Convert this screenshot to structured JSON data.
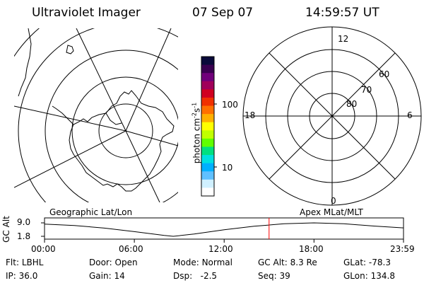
{
  "header": {
    "instrument": "Ultraviolet Imager",
    "date": "07 Sep 07",
    "time": "14:59:57 UT"
  },
  "colorbar": {
    "unit_label": "photon cm",
    "unit_sup1": "-2",
    "unit_mid": "s",
    "unit_sup2": "-1",
    "ticks": [
      "100",
      "10"
    ],
    "colors": [
      "#0a0a3a",
      "#3a0050",
      "#70007a",
      "#a0005a",
      "#d00020",
      "#f03000",
      "#ff7000",
      "#ffb000",
      "#ffff00",
      "#c0ff00",
      "#60ff00",
      "#00e080",
      "#00e0e0",
      "#00b0ff",
      "#60c0ff",
      "#d0f0ff",
      "#ffffff"
    ]
  },
  "left_map": {
    "title": "Geographic Lat/Lon"
  },
  "right_map": {
    "title": "Apex  MLat/MLT",
    "lat_labels": [
      "60",
      "70",
      "80"
    ],
    "mlt_labels": {
      "top": "12",
      "left": "18",
      "right": "6",
      "bottom": "0"
    }
  },
  "altitude_plot": {
    "ylabel": "GC Alt",
    "y_ticks": [
      "9.0",
      "1.8"
    ],
    "x_ticks": [
      "00:00",
      "06:00",
      "12:00",
      "18:00",
      "23:59"
    ],
    "marker_color": "#ff0000"
  },
  "chart_data": {
    "type": "line",
    "xlabel": "",
    "ylabel": "GC Alt",
    "ylim": [
      1.8,
      9.0
    ],
    "x": [
      0,
      2,
      4,
      6,
      8,
      8.6,
      10,
      12,
      14,
      16,
      18,
      20,
      22,
      23.98
    ],
    "values": [
      8.3,
      7.6,
      6.2,
      4.3,
      2.3,
      1.8,
      3.0,
      5.3,
      7.2,
      8.5,
      9.0,
      8.5,
      7.3,
      6.3
    ],
    "marker_time": 15.0
  },
  "info": {
    "rows": [
      [
        {
          "label": "Flt:",
          "value": "LBHL"
        },
        {
          "label": "Door:",
          "value": "Open"
        },
        {
          "label": "Mode:",
          "value": "Normal"
        },
        {
          "label": "GC Alt:",
          "value": "8.3 Re"
        },
        {
          "label": "GLat:",
          "value": "-78.3"
        }
      ],
      [
        {
          "label": "IP:",
          "value": "36.0"
        },
        {
          "label": "Gain:",
          "value": "14"
        },
        {
          "label": "Dsp:",
          "value": "  -2.5"
        },
        {
          "label": "Seq:",
          "value": "39"
        },
        {
          "label": "GLon:",
          "value": "134.8"
        }
      ]
    ]
  }
}
